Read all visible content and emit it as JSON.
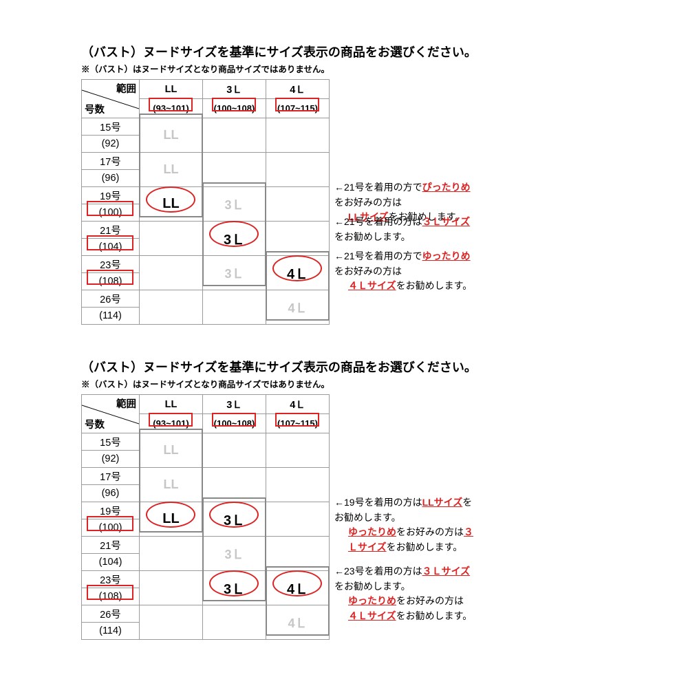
{
  "title": "（バスト）ヌードサイズを基準にサイズ表示の商品をお選びください。",
  "note": "※（バスト）はヌードサイズとなり商品サイズではありません。",
  "row_header_top": "範囲",
  "row_header_bottom": "号数",
  "cols": [
    "LL",
    "3Ｌ",
    "4Ｌ"
  ],
  "ranges": [
    "(93~101)",
    "(100~108)",
    "(107~115)"
  ],
  "rows": [
    {
      "no": "15号",
      "val": "(92)"
    },
    {
      "no": "17号",
      "val": "(96)"
    },
    {
      "no": "19号",
      "val": "(100)"
    },
    {
      "no": "21号",
      "val": "(104)"
    },
    {
      "no": "23号",
      "val": "(108)"
    },
    {
      "no": "26号",
      "val": "(114)"
    }
  ],
  "sec1": {
    "cells": {
      "LL": {
        "0": "LL",
        "1": "LL",
        "2": "LL"
      },
      "3L": {
        "2": "3Ｌ",
        "3": "3Ｌ",
        "4": "3Ｌ"
      },
      "4L": {
        "4": "4Ｌ",
        "5": "4Ｌ"
      }
    },
    "circled": [
      [
        "LL",
        2
      ],
      [
        "3L",
        3
      ],
      [
        "4L",
        4
      ]
    ],
    "redRowVals": [
      2,
      3,
      4
    ],
    "redHeaderRanges": [
      0,
      1,
      2
    ],
    "thickGroups": [
      [
        "LL",
        0,
        2
      ],
      [
        "3L",
        2,
        4
      ],
      [
        "4L",
        4,
        5
      ]
    ],
    "annotations": [
      {
        "row": 2,
        "lines": [
          {
            "pre": "←21号を着用の方で",
            "hi": "ぴったりめ",
            "post": "をお好みの方は"
          },
          {
            "hi": "LLサイズ",
            "post": "をお勧めします。"
          }
        ]
      },
      {
        "row": 3,
        "lines": [
          {
            "pre": "←21号を着用の方は",
            "hi": "３Ｌサイズ",
            "post": "をお勧めします。"
          }
        ]
      },
      {
        "row": 4,
        "lines": [
          {
            "pre": "←21号を着用の方で",
            "hi": "ゆったりめ",
            "post": "をお好みの方は"
          },
          {
            "hi": "４Ｌサイズ",
            "post": "をお勧めします。"
          }
        ]
      }
    ]
  },
  "sec2": {
    "cells": {
      "LL": {
        "0": "LL",
        "1": "LL",
        "2": "LL"
      },
      "3L": {
        "2": "3Ｌ",
        "3": "3Ｌ",
        "4": "3Ｌ"
      },
      "4L": {
        "4": "4Ｌ",
        "5": "4Ｌ"
      }
    },
    "circled": [
      [
        "LL",
        2
      ],
      [
        "3L",
        2
      ],
      [
        "3L",
        4
      ],
      [
        "4L",
        4
      ]
    ],
    "redRowVals": [
      2,
      4
    ],
    "redHeaderRanges": [
      0,
      1,
      2
    ],
    "thickGroups": [
      [
        "LL",
        0,
        2
      ],
      [
        "3L",
        2,
        4
      ],
      [
        "4L",
        4,
        5
      ]
    ],
    "annotations": [
      {
        "row": 2,
        "lines": [
          {
            "pre": "←19号を着用の方は",
            "hi": "LLサイズ",
            "post": "をお勧めします。"
          },
          {
            "hi": "ゆったりめ",
            "post": "をお好みの方は",
            "hi2": "３Ｌサイズ",
            "post2": "をお勧めします。"
          }
        ]
      },
      {
        "row": 4,
        "lines": [
          {
            "pre": "←23号を着用の方は",
            "hi": "３Ｌサイズ",
            "post": "をお勧めします。"
          },
          {
            "hi": "ゆったりめ",
            "post": "をお好みの方は"
          },
          {
            "hi": "４Ｌサイズ",
            "post": "をお勧めします。"
          }
        ]
      }
    ]
  },
  "colors": {
    "red": "#d22",
    "faint": "#c6c6c6",
    "grid": "#9a9a9a",
    "thick": "#777"
  }
}
